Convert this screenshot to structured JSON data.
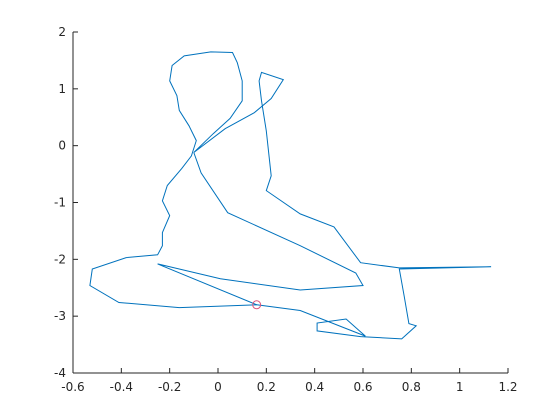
{
  "chart_data": {
    "type": "line",
    "x": [
      0.16,
      -0.16,
      -0.41,
      -0.53,
      -0.52,
      -0.38,
      -0.25,
      -0.23,
      -0.23,
      -0.2,
      -0.23,
      -0.21,
      -0.15,
      -0.11,
      -0.09,
      -0.12,
      -0.16,
      -0.17,
      -0.2,
      -0.19,
      -0.14,
      -0.03,
      0.06,
      0.08,
      0.1,
      0.1,
      0.05,
      -0.02,
      -0.1,
      0.03,
      0.15,
      0.22,
      0.27,
      0.18,
      0.17,
      0.18,
      0.2,
      0.22,
      0.2,
      0.34,
      0.48,
      0.59,
      0.75,
      1.13,
      0.75,
      0.77,
      0.79,
      0.82,
      0.76,
      0.59,
      0.41,
      0.41,
      0.53,
      0.61,
      0.34,
      0.16,
      -0.25,
      0.01,
      0.34,
      0.6,
      0.57,
      0.34,
      0.04,
      -0.07,
      -0.1
    ],
    "series": [
      {
        "color": "#0072bd",
        "values": [
          -2.8,
          -2.85,
          -2.76,
          -2.46,
          -2.17,
          -1.97,
          -1.92,
          -1.76,
          -1.53,
          -1.23,
          -0.97,
          -0.7,
          -0.4,
          -0.18,
          0.09,
          0.35,
          0.62,
          0.88,
          1.14,
          1.41,
          1.58,
          1.65,
          1.64,
          1.46,
          1.14,
          0.79,
          0.48,
          0.21,
          -0.12,
          0.3,
          0.58,
          0.83,
          1.16,
          1.29,
          1.14,
          0.79,
          0.26,
          -0.53,
          -0.79,
          -1.2,
          -1.43,
          -2.06,
          -2.15,
          -2.13,
          -2.17,
          -2.64,
          -3.13,
          -3.17,
          -3.4,
          -3.36,
          -3.26,
          -3.12,
          -3.05,
          -3.35,
          -2.9,
          -2.8,
          -2.08,
          -2.34,
          -2.54,
          -2.46,
          -2.24,
          -1.76,
          -1.18,
          -0.48,
          -0.12
        ]
      }
    ],
    "marker": {
      "x": 0.16,
      "y": -2.8,
      "color": "#d9577f"
    },
    "xlim": [
      -0.6,
      1.2
    ],
    "xticks": [
      -0.6,
      -0.4,
      -0.2,
      0,
      0.2,
      0.4,
      0.6,
      0.8,
      1,
      1.2
    ],
    "ylim": [
      -4,
      2
    ],
    "yticks": [
      -4,
      -3,
      -2,
      -1,
      0,
      1,
      2
    ]
  }
}
